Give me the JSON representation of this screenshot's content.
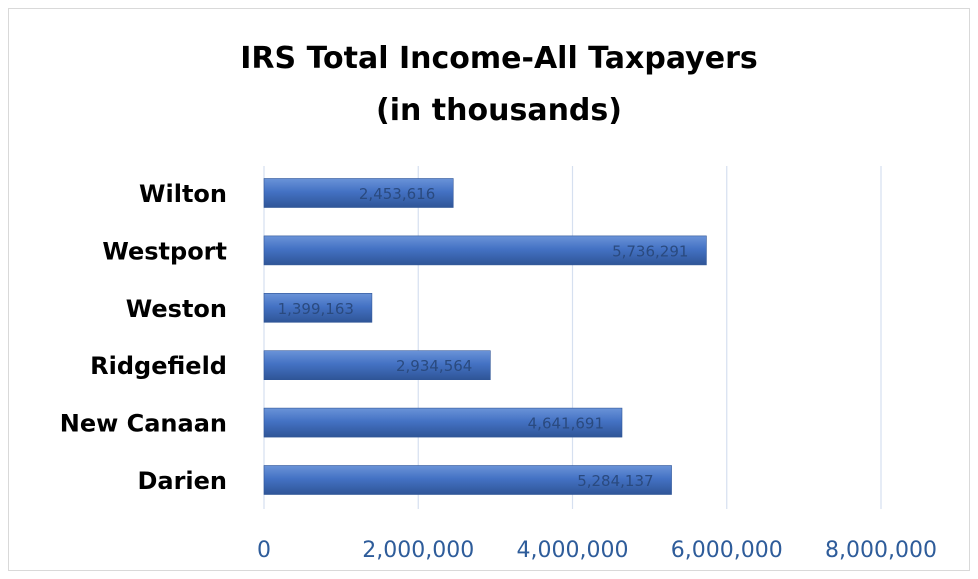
{
  "chart_data": {
    "type": "bar",
    "orientation": "horizontal",
    "title_lines": [
      "IRS Total Income-All Taxpayers",
      "(in thousands)"
    ],
    "categories": [
      "Wilton",
      "Westport",
      "Weston",
      "Ridgefield",
      "New Canaan",
      "Darien"
    ],
    "values": [
      2453616,
      5736291,
      1399163,
      2934564,
      4641691,
      5284137
    ],
    "data_labels": [
      "2,453,616",
      "5,736,291",
      "1,399,163",
      "2,934,564",
      "4,641,691",
      "5,284,137"
    ],
    "xlim": [
      0,
      8000000
    ],
    "x_ticks": [
      0,
      2000000,
      4000000,
      6000000,
      8000000
    ],
    "x_tick_labels": [
      "0",
      "2,000,000",
      "4,000,000",
      "6,000,000",
      "8,000,000"
    ],
    "grid": true,
    "legend": "none",
    "colors": {
      "bar": "#4472c4",
      "bar_light": "#6a93d8",
      "bar_dark": "#2f5597",
      "grid": "#d6e0f0",
      "tick_label": "#2e5c9a",
      "data_label": "#2a4a7f"
    }
  }
}
